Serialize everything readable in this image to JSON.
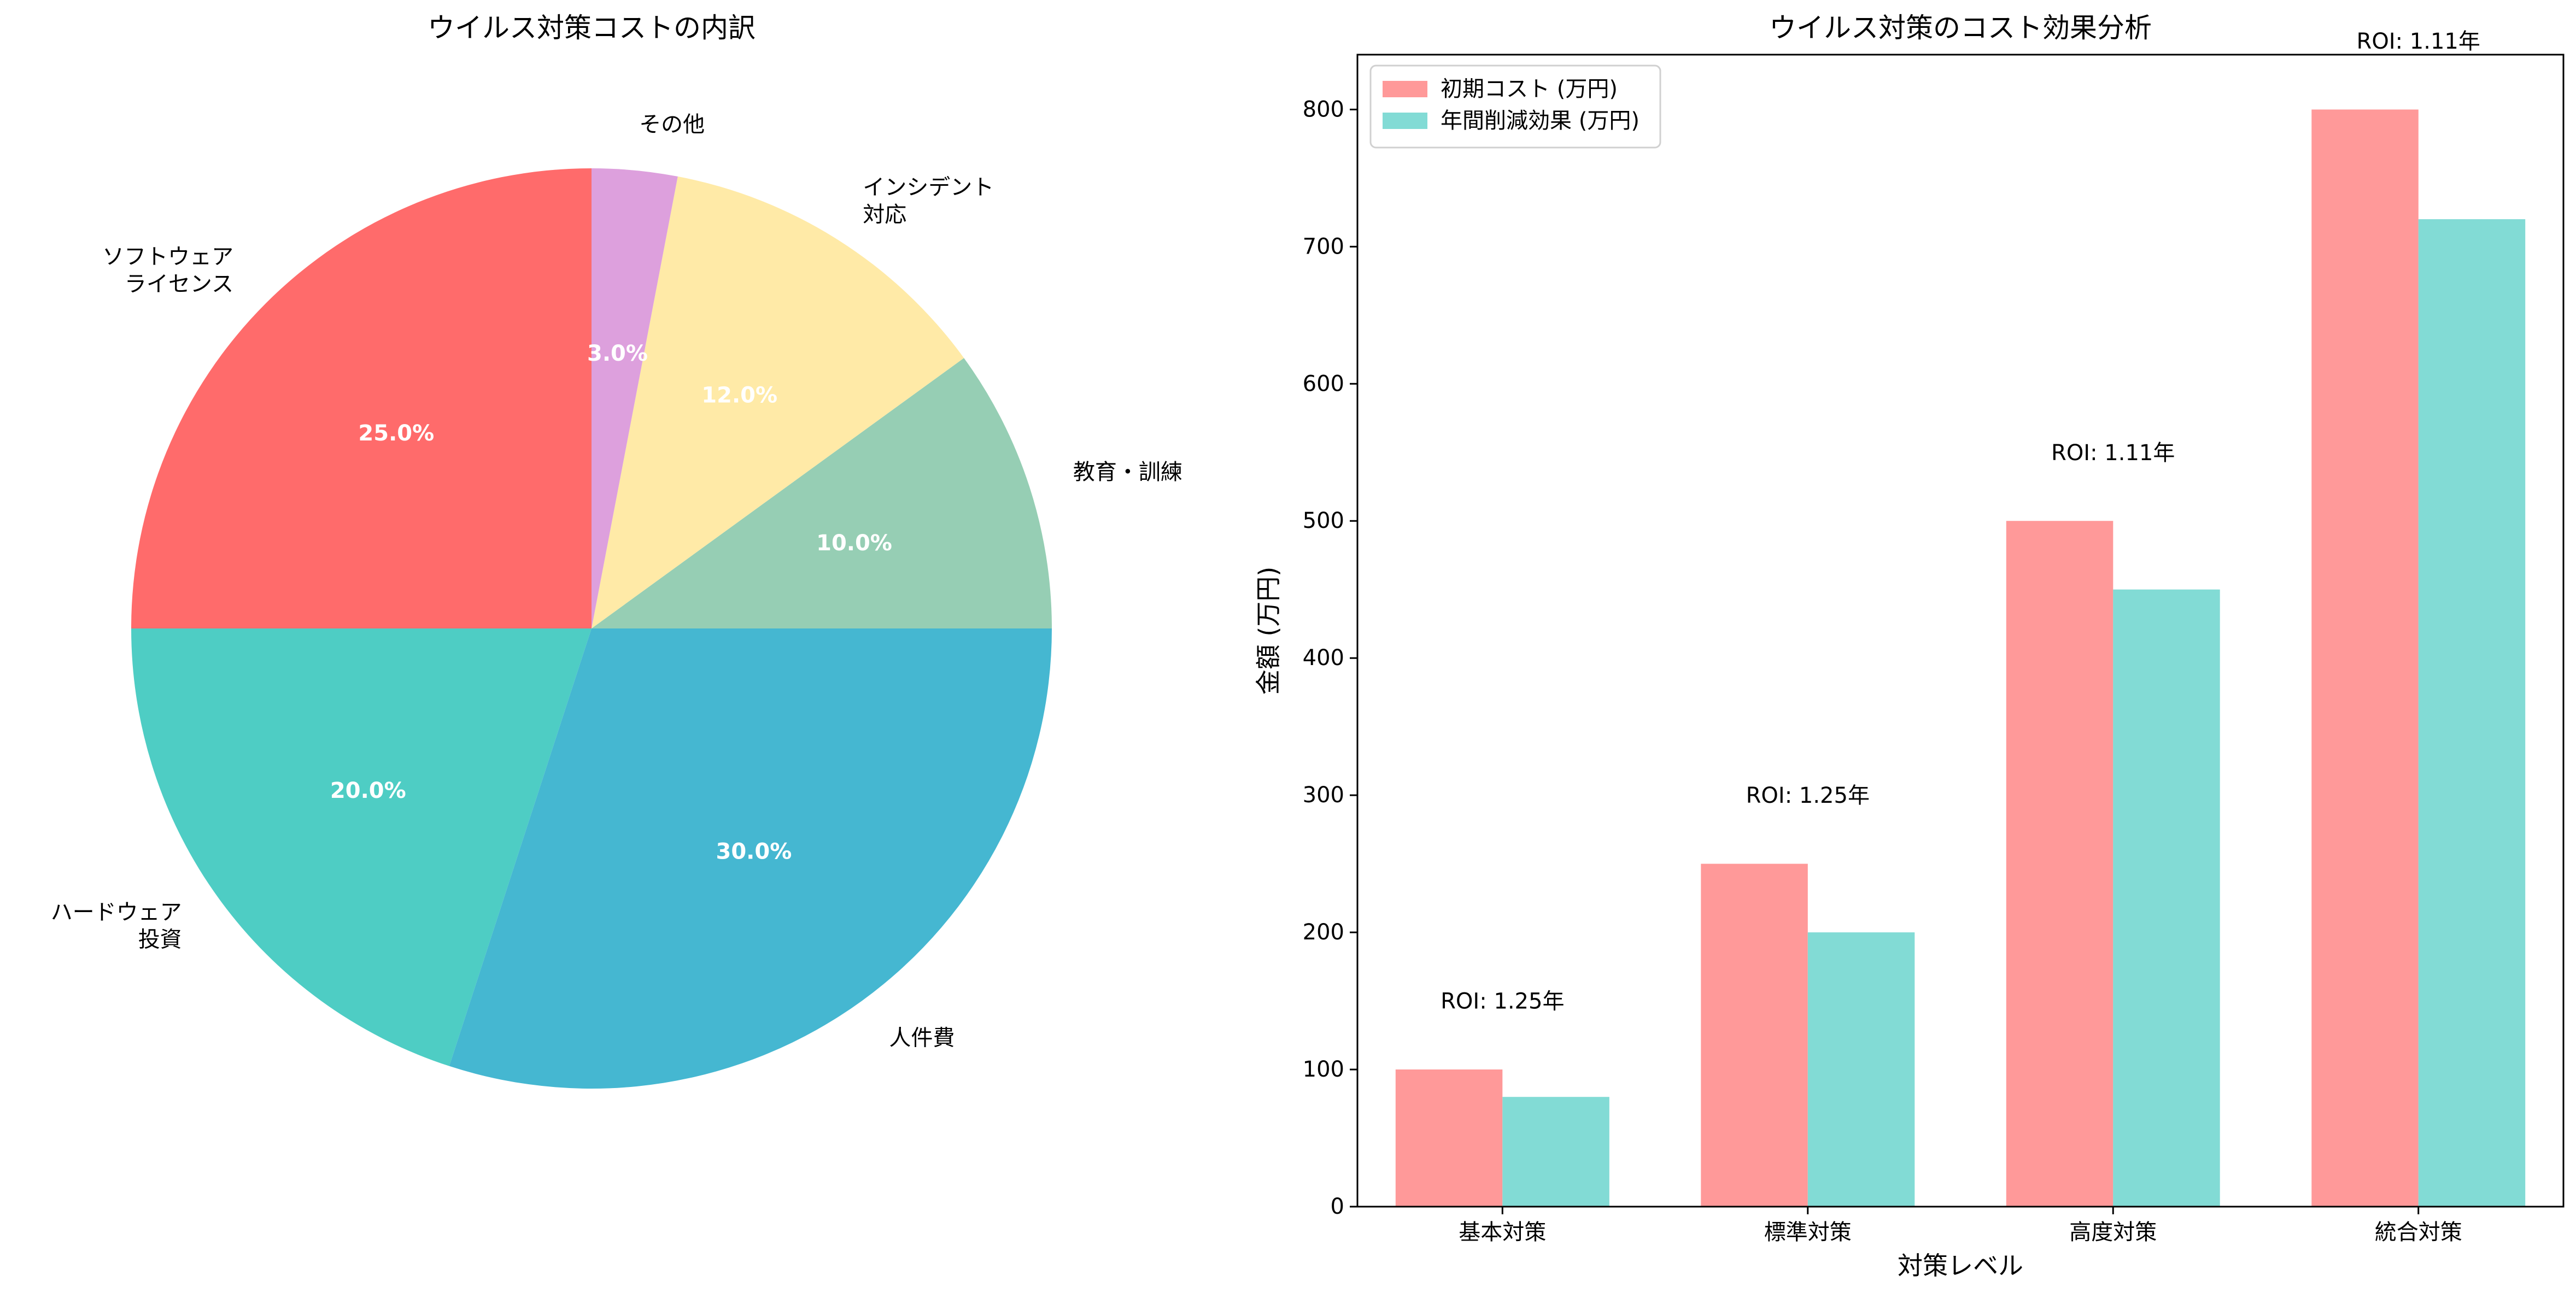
{
  "chart_data": [
    {
      "type": "pie",
      "title": "ウイルス対策コストの内訳",
      "start_angle": 90,
      "direction": "counterclockwise",
      "slices": [
        {
          "label": "ソフトウェア\nライセンス",
          "value": 25.0,
          "pct_label": "25.0%",
          "color": "#FF6B6B"
        },
        {
          "label": "ハードウェア\n投資",
          "value": 20.0,
          "pct_label": "20.0%",
          "color": "#4ECDC4"
        },
        {
          "label": "人件費",
          "value": 30.0,
          "pct_label": "30.0%",
          "color": "#45B7D1"
        },
        {
          "label": "教育・訓練",
          "value": 10.0,
          "pct_label": "10.0%",
          "color": "#96CEB4"
        },
        {
          "label": "インシデント\n対応",
          "value": 12.0,
          "pct_label": "12.0%",
          "color": "#FFEAA7"
        },
        {
          "label": "その他",
          "value": 3.0,
          "pct_label": "3.0%",
          "color": "#DDA0DD"
        }
      ]
    },
    {
      "type": "bar",
      "title": "ウイルス対策のコスト効果分析",
      "xlabel": "対策レベル",
      "ylabel": "金額 (万円)",
      "ylim": [
        0,
        840
      ],
      "yticks": [
        0,
        100,
        200,
        300,
        400,
        500,
        600,
        700,
        800
      ],
      "categories": [
        "基本対策",
        "標準対策",
        "高度対策",
        "統合対策"
      ],
      "series": [
        {
          "name": "初期コスト (万円)",
          "values": [
            100,
            250,
            500,
            800
          ],
          "color": "#FF9999"
        },
        {
          "name": "年間削減効果 (万円)",
          "values": [
            80,
            200,
            450,
            720
          ],
          "color": "#82DBD5"
        }
      ],
      "annotations": [
        "ROI: 1.25年",
        "ROI: 1.25年",
        "ROI: 1.11年",
        "ROI: 1.11年"
      ],
      "legend": "top-left"
    }
  ]
}
